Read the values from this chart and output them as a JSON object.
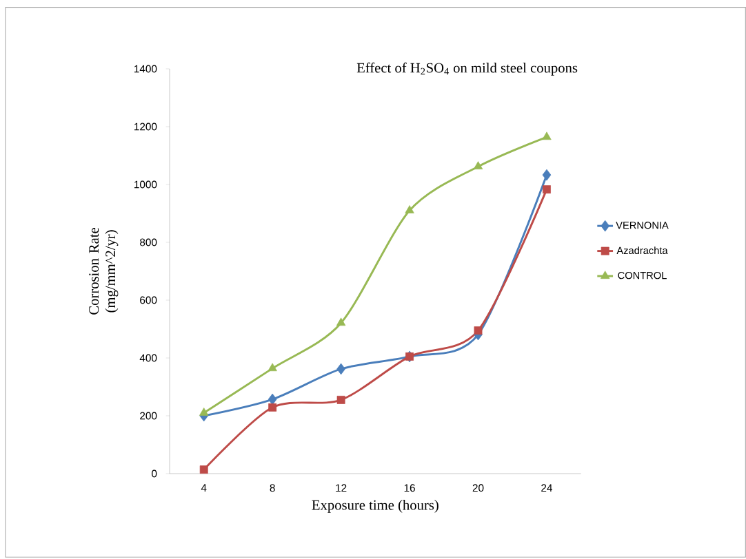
{
  "chart_data": {
    "type": "line",
    "title": "Effect of H$_{2}$SO$_{4}$ on mild steel coupons",
    "xlabel": "Exposure time (hours)",
    "ylabel": "Corrosion Rate (mg/mm^2/yr)",
    "categories": [
      "4",
      "8",
      "12",
      "16",
      "20",
      "24"
    ],
    "series": [
      {
        "name": "VERNONIA",
        "color": "#4a7ebb",
        "marker": "diamond",
        "values": [
          200,
          257,
          362,
          405,
          481,
          1033
        ]
      },
      {
        "name": "Azadrachta",
        "color": "#be4b48",
        "marker": "square",
        "values": [
          14,
          229,
          255,
          405,
          495,
          983
        ]
      },
      {
        "name": "CONTROL",
        "color": "#98b954",
        "marker": "triangle",
        "values": [
          210,
          364,
          521,
          910,
          1062,
          1164
        ]
      }
    ],
    "ylim": [
      0,
      1400
    ],
    "yticks": [
      0,
      200,
      400,
      600,
      800,
      1000,
      1200,
      1400
    ],
    "grid": false,
    "legend": "right"
  }
}
